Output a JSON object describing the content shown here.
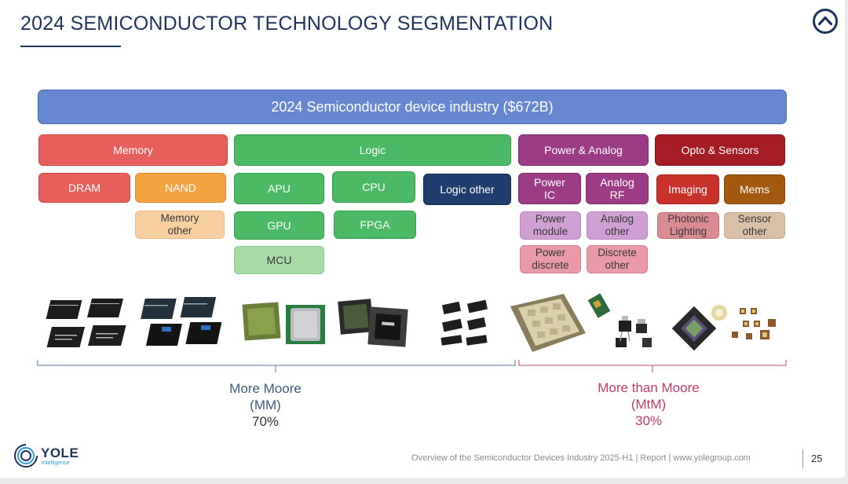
{
  "header": {
    "title": "2024 SEMICONDUCTOR TECHNOLOGY SEGMENTATION"
  },
  "industry": {
    "label": "2024 Semiconductor device industry ($672B)"
  },
  "categories": {
    "memory": "Memory",
    "logic": "Logic",
    "power_analog": "Power & Analog",
    "opto": "Opto & Sensors"
  },
  "segments": {
    "dram": "DRAM",
    "nand": "NAND",
    "memory_other": "Memory other",
    "apu": "APU",
    "cpu": "CPU",
    "logic_other": "Logic other",
    "gpu": "GPU",
    "fpga": "FPGA",
    "mcu": "MCU",
    "power_ic": "Power IC",
    "analog_rf": "Analog RF",
    "power_module": "Power module",
    "analog_other": "Analog other",
    "power_discrete": "Power discrete",
    "discrete_other": "Discrete other",
    "imaging": "Imaging",
    "mems": "Mems",
    "photonic_lighting": "Photonic Lighting",
    "sensor_other": "Sensor other"
  },
  "groups": {
    "more_moore": {
      "name": "More Moore",
      "abbr": "(MM)",
      "share": "70%"
    },
    "more_than_moore": {
      "name": "More than Moore",
      "abbr": "(MtM)",
      "share": "30%"
    }
  },
  "footer": {
    "text": "Overview of the Semiconductor Devices Industry 2025-H1 | Report | www.yolegroup.com",
    "page": "25",
    "logo_text": "YOLE",
    "logo_sub": "Intelligence"
  },
  "colors": {
    "title": "#1f3560",
    "industry": "#6688d0",
    "memory": "#e8605b",
    "nand": "#f3a440",
    "memory_other": "#f8cfa0",
    "logic": "#4cba64",
    "mcu": "#a6dba6",
    "logic_other": "#1f3e6e",
    "power_analog": "#9c3c86",
    "power_light": "#cf9fd3",
    "discrete": "#e89aa8",
    "opto": "#a51d24",
    "imaging": "#c8322a",
    "mems": "#a25a10",
    "photonic": "#d98b92",
    "sensor_other": "#d8bfa5",
    "mm_text": "#3d5a8a",
    "mtm_text": "#c73b6c"
  },
  "icons": [
    "up-chevron-icon",
    "dram-chips-image",
    "nand-chips-image",
    "cpu-chips-image",
    "gpu-fpga-chips-image",
    "mcu-chips-image",
    "power-module-image",
    "discrete-components-image",
    "image-sensor-image",
    "led-components-image",
    "yole-logo-icon"
  ]
}
